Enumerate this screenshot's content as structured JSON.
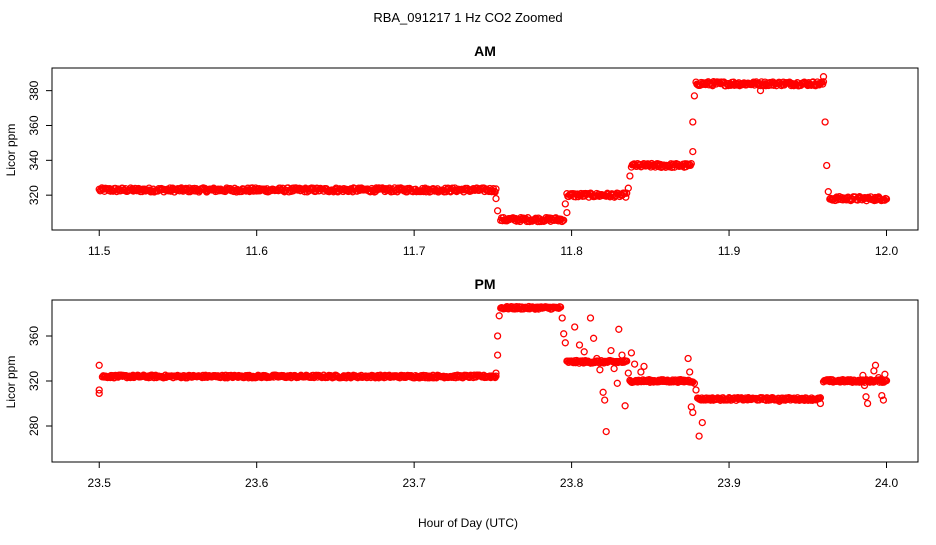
{
  "figure": {
    "title": "RBA_091217  1 Hz CO2 Zoomed",
    "xlabel": "Hour of Day (UTC)"
  },
  "chart_data": [
    {
      "type": "scatter",
      "title": "AM",
      "xlabel": "Hour of Day (UTC)",
      "ylabel": "Licor ppm",
      "xlim": [
        11.47,
        12.02
      ],
      "ylim": [
        300,
        393
      ],
      "xticks": [
        11.5,
        11.6,
        11.7,
        11.8,
        11.9,
        12.0
      ],
      "xtick_labels": [
        "11.5",
        "11.6",
        "11.7",
        "11.8",
        "11.9",
        "12.0"
      ],
      "yticks": [
        320,
        340,
        360,
        380
      ],
      "ytick_labels": [
        "320",
        "340",
        "360",
        "380"
      ],
      "marker_color": "#ff0000",
      "segments": [
        {
          "x_start": 11.5,
          "x_end": 11.752,
          "y": 323
        },
        {
          "x_start": 11.755,
          "x_end": 11.795,
          "y": 306
        },
        {
          "x_start": 11.797,
          "x_end": 11.835,
          "y": 320
        },
        {
          "x_start": 11.838,
          "x_end": 11.876,
          "y": 337
        },
        {
          "x_start": 11.879,
          "x_end": 11.96,
          "y": 384
        },
        {
          "x_start": 11.964,
          "x_end": 12.0,
          "y": 318
        }
      ],
      "transition_points": [
        {
          "x": 11.752,
          "y": 318
        },
        {
          "x": 11.753,
          "y": 311
        },
        {
          "x": 11.796,
          "y": 315
        },
        {
          "x": 11.797,
          "y": 310
        },
        {
          "x": 11.836,
          "y": 324
        },
        {
          "x": 11.837,
          "y": 331
        },
        {
          "x": 11.877,
          "y": 345
        },
        {
          "x": 11.877,
          "y": 362
        },
        {
          "x": 11.878,
          "y": 377
        },
        {
          "x": 11.96,
          "y": 388
        },
        {
          "x": 11.961,
          "y": 362
        },
        {
          "x": 11.962,
          "y": 337
        },
        {
          "x": 11.963,
          "y": 322
        },
        {
          "x": 11.92,
          "y": 380
        }
      ]
    },
    {
      "type": "scatter",
      "title": "PM",
      "xlabel": "Hour of Day (UTC)",
      "ylabel": "Licor ppm",
      "xlim": [
        23.47,
        24.02
      ],
      "ylim": [
        248,
        392
      ],
      "xticks": [
        23.5,
        23.6,
        23.7,
        23.8,
        23.9,
        24.0
      ],
      "xtick_labels": [
        "23.5",
        "23.6",
        "23.7",
        "23.8",
        "23.9",
        "24.0"
      ],
      "yticks": [
        280,
        320,
        360
      ],
      "ytick_labels": [
        "280",
        "320",
        "360"
      ],
      "marker_color": "#ff0000",
      "segments": [
        {
          "x_start": 23.502,
          "x_end": 23.752,
          "y": 324
        },
        {
          "x_start": 23.755,
          "x_end": 23.793,
          "y": 385
        },
        {
          "x_start": 23.797,
          "x_end": 23.835,
          "y": 337
        },
        {
          "x_start": 23.837,
          "x_end": 23.877,
          "y": 320
        },
        {
          "x_start": 23.88,
          "x_end": 23.958,
          "y": 304
        },
        {
          "x_start": 23.96,
          "x_end": 24.0,
          "y": 320
        }
      ],
      "transition_points": [
        {
          "x": 23.5,
          "y": 334
        },
        {
          "x": 23.5,
          "y": 312
        },
        {
          "x": 23.5,
          "y": 309
        },
        {
          "x": 23.752,
          "y": 327
        },
        {
          "x": 23.753,
          "y": 343
        },
        {
          "x": 23.753,
          "y": 360
        },
        {
          "x": 23.754,
          "y": 378
        },
        {
          "x": 23.794,
          "y": 376
        },
        {
          "x": 23.795,
          "y": 362
        },
        {
          "x": 23.796,
          "y": 354
        },
        {
          "x": 23.802,
          "y": 368
        },
        {
          "x": 23.805,
          "y": 352
        },
        {
          "x": 23.808,
          "y": 346
        },
        {
          "x": 23.812,
          "y": 376
        },
        {
          "x": 23.814,
          "y": 358
        },
        {
          "x": 23.816,
          "y": 340
        },
        {
          "x": 23.818,
          "y": 330
        },
        {
          "x": 23.82,
          "y": 310
        },
        {
          "x": 23.821,
          "y": 303
        },
        {
          "x": 23.822,
          "y": 275
        },
        {
          "x": 23.825,
          "y": 347
        },
        {
          "x": 23.827,
          "y": 331
        },
        {
          "x": 23.829,
          "y": 318
        },
        {
          "x": 23.83,
          "y": 366
        },
        {
          "x": 23.832,
          "y": 343
        },
        {
          "x": 23.834,
          "y": 298
        },
        {
          "x": 23.836,
          "y": 327
        },
        {
          "x": 23.838,
          "y": 345
        },
        {
          "x": 23.84,
          "y": 335
        },
        {
          "x": 23.844,
          "y": 328
        },
        {
          "x": 23.846,
          "y": 333
        },
        {
          "x": 23.874,
          "y": 340
        },
        {
          "x": 23.875,
          "y": 328
        },
        {
          "x": 23.876,
          "y": 297
        },
        {
          "x": 23.877,
          "y": 292
        },
        {
          "x": 23.878,
          "y": 318
        },
        {
          "x": 23.879,
          "y": 312
        },
        {
          "x": 23.881,
          "y": 271
        },
        {
          "x": 23.883,
          "y": 283
        },
        {
          "x": 23.932,
          "y": 302
        },
        {
          "x": 23.958,
          "y": 300
        },
        {
          "x": 23.985,
          "y": 325
        },
        {
          "x": 23.986,
          "y": 316
        },
        {
          "x": 23.987,
          "y": 306
        },
        {
          "x": 23.988,
          "y": 300
        },
        {
          "x": 23.992,
          "y": 329
        },
        {
          "x": 23.993,
          "y": 334
        },
        {
          "x": 23.995,
          "y": 323
        },
        {
          "x": 23.997,
          "y": 307
        },
        {
          "x": 23.998,
          "y": 303
        },
        {
          "x": 23.999,
          "y": 326
        }
      ]
    }
  ]
}
